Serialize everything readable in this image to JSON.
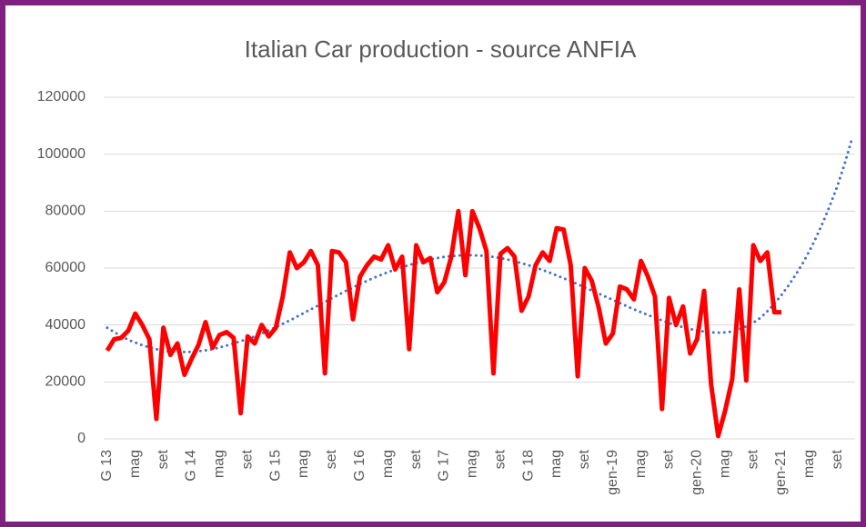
{
  "chart_data": {
    "type": "line",
    "title": "Italian Car production -  source ANFIA",
    "categories": [
      "G 13",
      null,
      null,
      null,
      "mag",
      null,
      null,
      null,
      "set",
      null,
      null,
      null,
      "G 14",
      null,
      null,
      null,
      "mag",
      null,
      null,
      null,
      "set",
      null,
      null,
      null,
      "G 15",
      null,
      null,
      null,
      "mag",
      null,
      null,
      null,
      "set",
      null,
      null,
      null,
      "G 16",
      null,
      null,
      null,
      "mag",
      null,
      null,
      null,
      "set",
      null,
      null,
      null,
      "G 17",
      null,
      null,
      null,
      "mag",
      null,
      null,
      null,
      "set",
      null,
      null,
      null,
      "G 18",
      null,
      null,
      null,
      "mag",
      null,
      null,
      null,
      "set",
      null,
      null,
      null,
      "gen-19",
      null,
      null,
      null,
      "mag",
      null,
      null,
      null,
      "set",
      null,
      null,
      null,
      "gen-20",
      null,
      null,
      null,
      "mag",
      null,
      null,
      null,
      "set",
      null,
      null,
      null,
      "gen-21",
      null,
      null,
      null,
      "mag",
      null,
      null,
      null,
      "set",
      null,
      null
    ],
    "series": [
      {
        "color": "#ff0000",
        "style": "solid",
        "values": [
          31000,
          35000,
          35500,
          38000,
          44000,
          40000,
          35000,
          7000,
          39000,
          29500,
          33500,
          22500,
          28000,
          33000,
          41000,
          32000,
          36500,
          37500,
          35500,
          9000,
          36000,
          33500,
          40000,
          36000,
          39000,
          50000,
          65500,
          60000,
          62000,
          66000,
          61000,
          23000,
          66000,
          65500,
          62000,
          42000,
          57000,
          61000,
          64000,
          63000,
          68000,
          59500,
          64000,
          31500,
          68000,
          62000,
          63500,
          51500,
          55000,
          64000,
          80000,
          57500,
          80000,
          74000,
          66000,
          23000,
          65000,
          67000,
          64000,
          45000,
          50000,
          61000,
          65500,
          62500,
          74000,
          73500,
          61000,
          22000,
          60000,
          55500,
          46000,
          33500,
          37000,
          53500,
          52500,
          49000,
          62500,
          57000,
          50000,
          10500,
          49500,
          40000,
          46500,
          30000,
          35000,
          52000,
          19000,
          1000,
          10000,
          21000,
          52500,
          20500,
          68000,
          62500,
          65500,
          44500,
          44500,
          null,
          null,
          null,
          null,
          null,
          null,
          null,
          null,
          null,
          null
        ]
      },
      {
        "color": "#4472c4",
        "style": "dotted",
        "values": [
          39000,
          37500,
          36000,
          34800,
          33800,
          32900,
          32100,
          31500,
          31000,
          30700,
          30500,
          30500,
          30600,
          30800,
          31100,
          31500,
          32100,
          32800,
          33500,
          34300,
          35100,
          36000,
          37000,
          38100,
          39200,
          40400,
          41600,
          42900,
          44200,
          45500,
          46800,
          48100,
          49400,
          50700,
          52000,
          53200,
          54400,
          55500,
          56600,
          57600,
          58600,
          59500,
          60300,
          61100,
          61800,
          62400,
          63000,
          63500,
          63900,
          64200,
          64400,
          64500,
          64500,
          64400,
          64200,
          63900,
          63500,
          63000,
          62400,
          61700,
          61000,
          60200,
          59300,
          58400,
          57400,
          56400,
          55400,
          54300,
          53200,
          52100,
          51000,
          49900,
          48800,
          47700,
          46600,
          45500,
          44500,
          43500,
          42500,
          41600,
          40700,
          39900,
          39200,
          38600,
          38100,
          37700,
          37400,
          37300,
          37400,
          37700,
          38500,
          39500,
          40800,
          42500,
          44800,
          47500,
          50500,
          53800,
          57500,
          61500,
          66000,
          71000,
          76500,
          82500,
          89000,
          96500,
          105000
        ]
      }
    ],
    "ylim": [
      0,
      120000
    ],
    "yticks": [
      0,
      20000,
      40000,
      60000,
      80000,
      100000,
      120000
    ],
    "grid": true
  }
}
